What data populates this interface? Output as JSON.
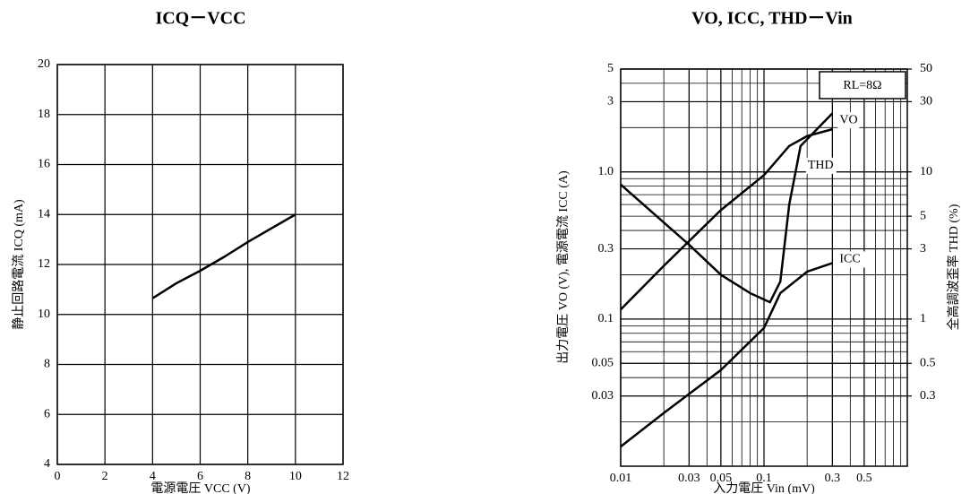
{
  "chart_data": [
    {
      "type": "line",
      "title": "ICQ－VCC",
      "x_label": "電源電圧 VCC (V)",
      "y_label": "静止回路電流 ICQ (mA)",
      "x": [
        4,
        5,
        6,
        7,
        8,
        9,
        10
      ],
      "values": [
        10.65,
        11.25,
        11.75,
        12.3,
        12.9,
        13.45,
        14.0
      ],
      "color": "#000000",
      "xlim": [
        0,
        12
      ],
      "xticks": [
        0,
        2,
        4,
        6,
        8,
        10,
        12
      ],
      "ylim": [
        4,
        20
      ],
      "yticks": [
        4,
        6,
        8,
        10,
        12,
        14,
        16,
        18,
        20
      ],
      "grid": true
    },
    {
      "type": "line",
      "title": "VO, ICC, THD－Vin",
      "x_label": "入力電圧 Vin (mV)",
      "y_label": "出力電圧 VO (V), 電源電流 ICC (A)",
      "y2_label": "全高調波歪率 THD (%)",
      "annotations": [
        "RL=8Ω"
      ],
      "log_x": true,
      "log_y": true,
      "grid": true,
      "xlim": [
        0.01,
        1
      ],
      "xticks": [
        0.01,
        0.03,
        0.05,
        0.1,
        0.3,
        0.5
      ],
      "ylim": [
        0.01,
        5
      ],
      "yticks": [
        5,
        3,
        {
          "value": 1,
          "label": "1.0"
        },
        0.3,
        0.1,
        0.05,
        0.03
      ],
      "y2lim": [
        0.1,
        50
      ],
      "y2ticks": [
        50,
        30,
        10,
        5,
        3,
        1,
        0.5,
        0.3
      ],
      "series": [
        {
          "name": "VO",
          "color": "#000000",
          "x": [
            0.01,
            0.02,
            0.05,
            0.1,
            0.15,
            0.2,
            0.3
          ],
          "values": [
            0.116,
            0.23,
            0.55,
            0.95,
            1.5,
            1.75,
            1.95
          ]
        },
        {
          "name": "ICC",
          "color": "#000000",
          "x": [
            0.01,
            0.02,
            0.05,
            0.1,
            0.13,
            0.2,
            0.3
          ],
          "values": [
            0.0136,
            0.023,
            0.045,
            0.087,
            0.15,
            0.21,
            0.24
          ]
        },
        {
          "name": "THD",
          "color": "#000000",
          "axis": "y2",
          "x": [
            0.01,
            0.03,
            0.05,
            0.08,
            0.11,
            0.13,
            0.15,
            0.18,
            0.3
          ],
          "values": [
            8.2,
            3.2,
            2.0,
            1.5,
            1.3,
            1.8,
            6,
            15,
            25
          ]
        }
      ]
    }
  ]
}
